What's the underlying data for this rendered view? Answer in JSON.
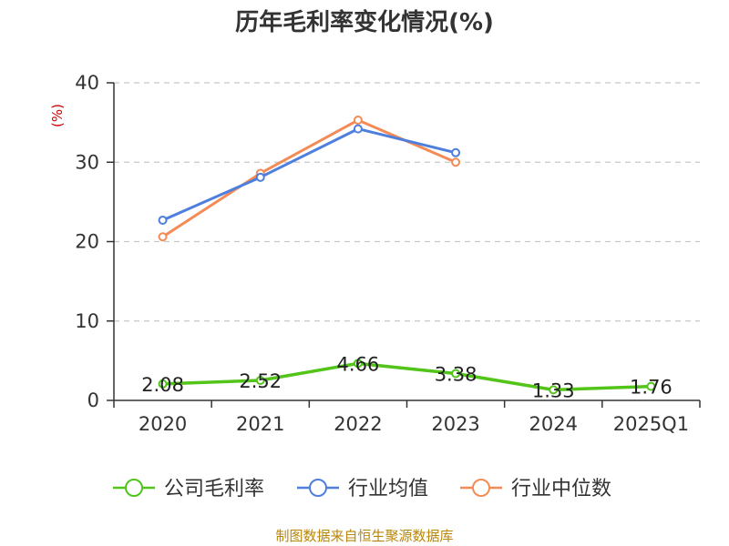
{
  "chart_data": {
    "type": "line",
    "title": "历年毛利率变化情况(%)",
    "ylabel": "(%)",
    "xlabel": "",
    "categories": [
      "2020",
      "2021",
      "2022",
      "2023",
      "2024",
      "2025Q1"
    ],
    "ylim": [
      0,
      40
    ],
    "yticks": [
      0,
      10,
      20,
      30,
      40
    ],
    "grid": true,
    "legend_position": "bottom",
    "series": [
      {
        "name": "公司毛利率",
        "color": "#52c41a",
        "values": [
          2.08,
          2.52,
          4.66,
          3.38,
          1.33,
          1.76
        ],
        "labels": [
          "2.08",
          "2.52",
          "4.66",
          "3.38",
          "1.33",
          "1.76"
        ]
      },
      {
        "name": "行业均值",
        "color": "#4e7fdc",
        "values": [
          22.7,
          28.1,
          34.2,
          31.2,
          null,
          null
        ]
      },
      {
        "name": "行业中位数",
        "color": "#f48b57",
        "values": [
          20.6,
          28.6,
          35.3,
          30.0,
          null,
          null
        ]
      }
    ]
  },
  "footer": {
    "source": "制图数据来自恒生聚源数据库"
  }
}
